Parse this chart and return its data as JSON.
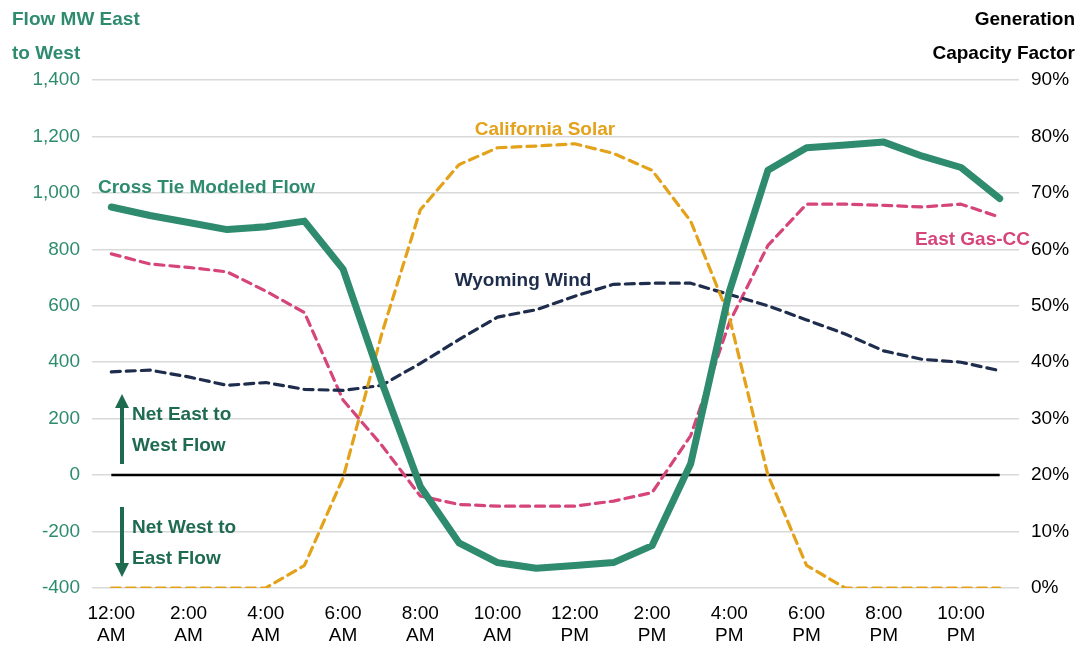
{
  "chart_data": {
    "type": "line",
    "ylabel": "Flow MW East to West",
    "y2label": "Generation Capacity Factor",
    "categories": [
      "12:00 AM",
      null,
      "2:00 AM",
      null,
      "4:00 AM",
      null,
      "6:00 AM",
      null,
      "8:00 AM",
      null,
      "10:00 AM",
      null,
      "12:00 PM",
      null,
      "2:00 PM",
      null,
      "4:00 PM",
      null,
      "6:00 PM",
      null,
      "8:00 PM",
      null,
      "10:00 PM",
      null
    ],
    "series": [
      {
        "name": "Cross Tie Modeled Flow",
        "color": "#2e8b6e",
        "line_style": "solid",
        "values": [
          950,
          920,
          895,
          870,
          880,
          900,
          730,
          330,
          -40,
          -240,
          -310,
          -330,
          -320,
          -310,
          -250,
          40,
          650,
          1080,
          1160,
          1170,
          1180,
          1130,
          1090,
          980
        ]
      },
      {
        "name": "California Solar",
        "color": "#e3a21a",
        "line_style": "dashed",
        "axis": "y2",
        "values": [
          0,
          0,
          0,
          0,
          0,
          4,
          19.5,
          45,
          67,
          75,
          78,
          78.3,
          78.7,
          77,
          74,
          65,
          48,
          20,
          4,
          0,
          0,
          0,
          0,
          0
        ]
      },
      {
        "name": "Wyoming Wind",
        "color": "#1f2d4d",
        "line_style": "dashed",
        "axis": "y2",
        "values": [
          38.3,
          38.6,
          37.4,
          35.9,
          36.4,
          35.2,
          35,
          35.9,
          39.8,
          44,
          48,
          49.3,
          51.7,
          53.8,
          54,
          54,
          52,
          50,
          47.5,
          45,
          42,
          40.5,
          40,
          38.5
        ]
      },
      {
        "name": "East Gas-CC",
        "color": "#d6457a",
        "line_style": "dashed",
        "axis": "y2",
        "values": [
          59.2,
          57.4,
          56.8,
          56,
          52.6,
          48.8,
          33.3,
          25.3,
          16.3,
          14.8,
          14.5,
          14.5,
          14.5,
          15.4,
          16.9,
          27,
          47,
          60.7,
          68,
          68,
          67.8,
          67.5,
          68,
          65.7
        ]
      }
    ],
    "ylim": [
      -400,
      1400
    ],
    "yticks": [
      -400,
      -200,
      0,
      200,
      400,
      600,
      800,
      {
        "value": 1000,
        "label": "1,000"
      },
      {
        "value": 1200,
        "label": "1,200"
      },
      {
        "value": 1400,
        "label": "1,400"
      }
    ],
    "y2lim": [
      0,
      90
    ],
    "y2ticks": [
      {
        "value": 0,
        "label": "0%"
      },
      {
        "value": 10,
        "label": "10%"
      },
      {
        "value": 20,
        "label": "20%"
      },
      {
        "value": 30,
        "label": "30%"
      },
      {
        "value": 40,
        "label": "40%"
      },
      {
        "value": 50,
        "label": "50%"
      },
      {
        "value": 60,
        "label": "60%"
      },
      {
        "value": 70,
        "label": "70%"
      },
      {
        "value": 80,
        "label": "80%"
      },
      {
        "value": 90,
        "label": "90%"
      }
    ],
    "ref_lines": [
      {
        "axis": "y",
        "value": 0,
        "color": "#000000"
      }
    ],
    "annotations": [
      "Net East to West Flow",
      "Net West to East Flow"
    ],
    "grid": "y",
    "legend": false,
    "marker": "none"
  }
}
